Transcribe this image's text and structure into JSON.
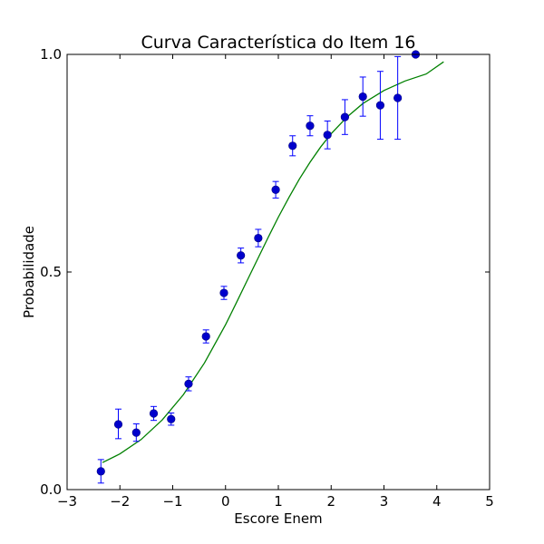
{
  "chart_data": {
    "type": "scatter",
    "title": "Curva Característica do Item 16",
    "xlabel": "Escore Enem",
    "ylabel": "Probabilidade",
    "xlim": [
      -3,
      5
    ],
    "ylim": [
      0,
      1
    ],
    "xticks": [
      -3,
      -2,
      -1,
      0,
      1,
      2,
      3,
      4,
      5
    ],
    "xtick_labels": [
      "−3",
      "−2",
      "−1",
      "0",
      "1",
      "2",
      "3",
      "4",
      "5"
    ],
    "yticks": [
      0,
      0.5,
      1
    ],
    "ytick_labels": [
      "0.0",
      "0.5",
      "1.0"
    ],
    "grid": false,
    "colors": {
      "points": "#0000ff",
      "points_fill": "#0000cc",
      "curve": "#008000"
    },
    "points": [
      {
        "x": -2.36,
        "y": 0.042,
        "err_low": 0.027,
        "err_high": 0.027
      },
      {
        "x": -2.03,
        "y": 0.15,
        "err_low": 0.033,
        "err_high": 0.035
      },
      {
        "x": -1.69,
        "y": 0.131,
        "err_low": 0.02,
        "err_high": 0.02
      },
      {
        "x": -1.36,
        "y": 0.175,
        "err_low": 0.016,
        "err_high": 0.016
      },
      {
        "x": -1.03,
        "y": 0.162,
        "err_low": 0.014,
        "err_high": 0.014
      },
      {
        "x": -0.7,
        "y": 0.243,
        "err_low": 0.016,
        "err_high": 0.016
      },
      {
        "x": -0.37,
        "y": 0.352,
        "err_low": 0.015,
        "err_high": 0.015
      },
      {
        "x": -0.03,
        "y": 0.452,
        "err_low": 0.015,
        "err_high": 0.015
      },
      {
        "x": 0.29,
        "y": 0.538,
        "err_low": 0.017,
        "err_high": 0.017
      },
      {
        "x": 0.62,
        "y": 0.578,
        "err_low": 0.02,
        "err_high": 0.02
      },
      {
        "x": 0.95,
        "y": 0.689,
        "err_low": 0.019,
        "err_high": 0.019
      },
      {
        "x": 1.27,
        "y": 0.79,
        "err_low": 0.023,
        "err_high": 0.023
      },
      {
        "x": 1.6,
        "y": 0.836,
        "err_low": 0.023,
        "err_high": 0.023
      },
      {
        "x": 1.93,
        "y": 0.815,
        "err_low": 0.032,
        "err_high": 0.032
      },
      {
        "x": 2.26,
        "y": 0.856,
        "err_low": 0.04,
        "err_high": 0.04
      },
      {
        "x": 2.6,
        "y": 0.903,
        "err_low": 0.045,
        "err_high": 0.045
      },
      {
        "x": 2.93,
        "y": 0.883,
        "err_low": 0.078,
        "err_high": 0.078
      },
      {
        "x": 3.26,
        "y": 0.9,
        "err_low": 0.095,
        "err_high": 0.095
      },
      {
        "x": 3.6,
        "y": 1.0,
        "err_low": 0.0,
        "err_high": 0.0
      }
    ],
    "curve": {
      "name": "",
      "x": [
        -2.33,
        -2.0,
        -1.6,
        -1.2,
        -0.8,
        -0.4,
        0.0,
        0.2,
        0.4,
        0.6,
        0.8,
        1.0,
        1.2,
        1.4,
        1.6,
        1.8,
        2.0,
        2.3,
        2.6,
        3.0,
        3.4,
        3.8,
        4.13
      ],
      "y": [
        0.062,
        0.082,
        0.115,
        0.16,
        0.218,
        0.291,
        0.379,
        0.428,
        0.478,
        0.528,
        0.578,
        0.626,
        0.671,
        0.714,
        0.752,
        0.787,
        0.818,
        0.856,
        0.887,
        0.917,
        0.939,
        0.955,
        0.983
      ]
    }
  }
}
